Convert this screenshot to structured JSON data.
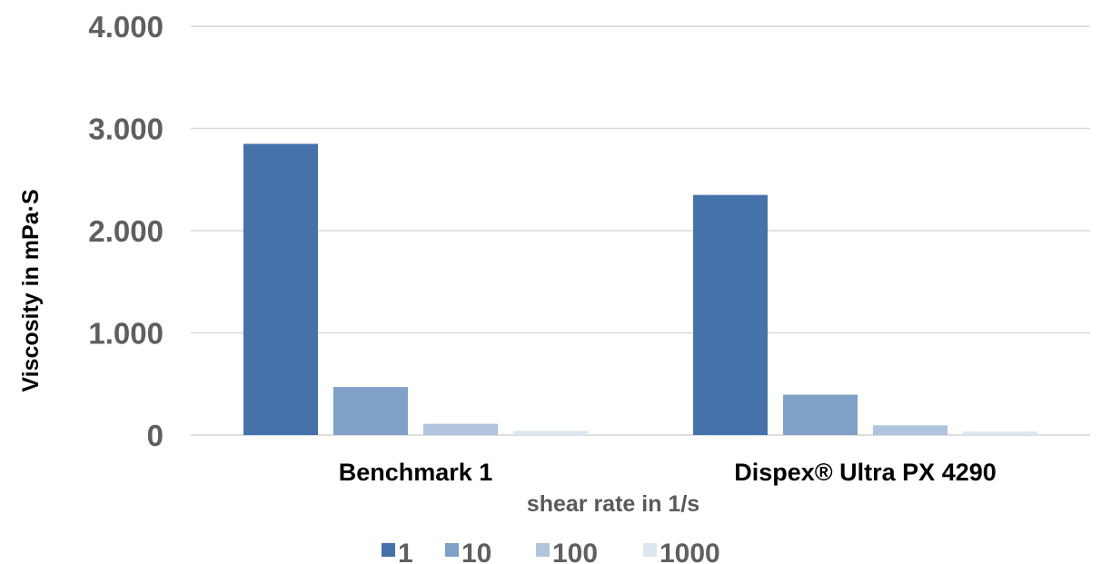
{
  "chart_data": {
    "type": "bar",
    "title": "",
    "xlabel": "shear rate in 1/s",
    "ylabel": "Viscosity  in mPa·S",
    "ylim": [
      0,
      4000
    ],
    "yticks": [
      0,
      1000,
      2000,
      3000,
      4000
    ],
    "ytick_labels": [
      "0",
      "1.000",
      "2.000",
      "3.000",
      "4.000"
    ],
    "grid": true,
    "legend_position": "bottom",
    "categories": [
      "Benchmark 1",
      "Dispex® Ultra PX 4290"
    ],
    "series": [
      {
        "name": "1",
        "color": "#4472a9",
        "values": [
          2850,
          2350
        ]
      },
      {
        "name": "10",
        "color": "#7fa1c8",
        "values": [
          470,
          395
        ]
      },
      {
        "name": "100",
        "color": "#b0c5dd",
        "values": [
          110,
          95
        ]
      },
      {
        "name": "1000",
        "color": "#dde5ef",
        "values": [
          40,
          35
        ]
      }
    ]
  }
}
